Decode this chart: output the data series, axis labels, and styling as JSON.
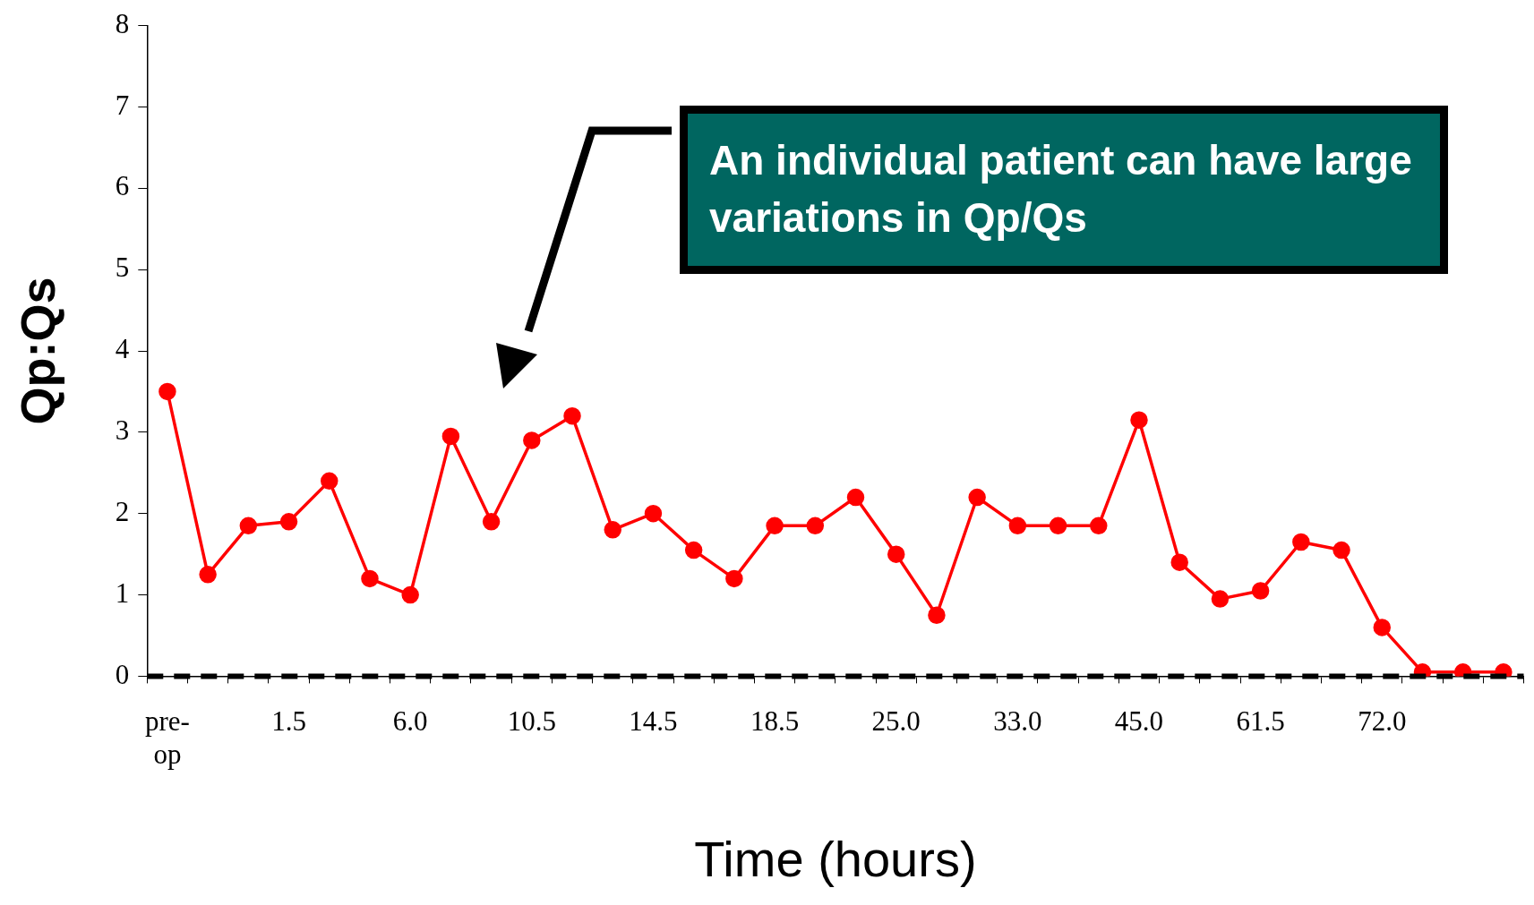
{
  "chart_data": {
    "type": "line",
    "xlabel": "Time (hours)",
    "ylabel": "Qp:Qs",
    "categories": [
      "pre-op",
      null,
      null,
      "1.5",
      null,
      null,
      "6.0",
      null,
      null,
      "10.5",
      null,
      null,
      "14.5",
      null,
      null,
      "18.5",
      null,
      null,
      "25.0",
      null,
      null,
      "33.0",
      null,
      null,
      "45.0",
      null,
      null,
      "61.5",
      null,
      null,
      "72.0",
      null,
      null,
      null
    ],
    "series": [
      {
        "color": "#ff0000",
        "values": [
          3.5,
          1.25,
          1.85,
          1.9,
          2.4,
          1.2,
          1.0,
          2.95,
          1.9,
          2.9,
          3.2,
          1.8,
          2.0,
          1.55,
          1.2,
          1.85,
          1.85,
          2.2,
          1.5,
          0.75,
          2.2,
          1.85,
          1.85,
          1.85,
          3.15,
          1.4,
          0.95,
          1.05,
          1.65,
          1.55,
          0.6,
          0.05,
          0.05,
          0.05
        ]
      }
    ],
    "ylim": [
      0,
      8
    ],
    "yticks": [
      0,
      1,
      2,
      3,
      4,
      5,
      6,
      7,
      8
    ],
    "grid": false,
    "legend": false,
    "marker": "circle",
    "line_style": "solid",
    "ref_lines": [
      {
        "axis": "y",
        "value": 0,
        "color": "#000000",
        "line_style": "dashed"
      }
    ],
    "annotations": [
      "An individual patient can have large variations in Qp/Qs"
    ]
  }
}
